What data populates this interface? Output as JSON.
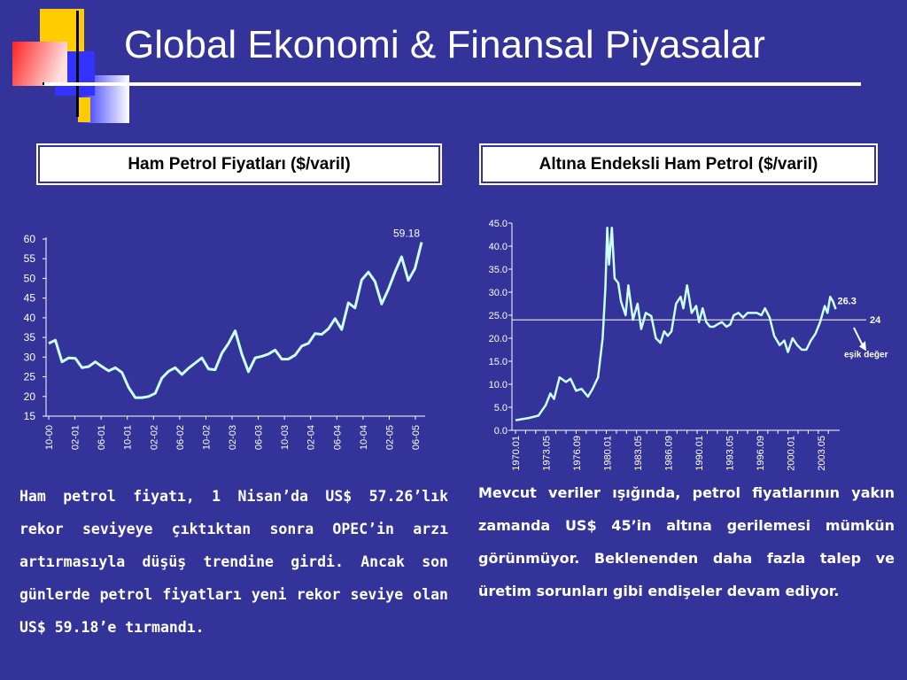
{
  "title": "Global Ekonomi & Finansal Piyasalar",
  "colors": {
    "background": "#333399",
    "line": "#ccffff",
    "text": "#ffffff"
  },
  "left_box_label": "Ham Petrol Fiyatları ($/varil)",
  "right_box_label": "Altına Endeksli Ham Petrol ($/varil)",
  "left_text": "Ham petrol fiyatı, 1 Nisan’da US$ 57.26’lık rekor seviyeye çıktıktan sonra OPEC’in arzı artırmasıyla düşüş trendine girdi. Ancak son günlerde petrol fiyatları yeni rekor seviye olan US$ 59.18’e tırmandı.",
  "right_text": "Mevcut veriler ışığında, petrol fiyatlarının yakın zamanda US$ 45’in altına gerilemesi mümkün görünmüyor. Beklenenden daha fazla talep ve üretim sorunları gibi endişeler devam ediyor.",
  "chart_data": [
    {
      "type": "line",
      "title": "Ham Petrol Fiyatları ($/varil)",
      "ylim": [
        15,
        60
      ],
      "yticks": [
        15,
        20,
        25,
        30,
        35,
        40,
        45,
        50,
        55,
        60
      ],
      "xticks": [
        "10-00",
        "02-01",
        "06-01",
        "10-01",
        "02-02",
        "06-02",
        "10-02",
        "02-03",
        "06-03",
        "10-03",
        "02-04",
        "06-04",
        "10-04",
        "02-05",
        "06-05"
      ],
      "values": [
        33.5,
        34.3,
        28.8,
        29.8,
        29.7,
        27.3,
        27.6,
        28.8,
        27.6,
        26.5,
        27.3,
        26.1,
        22.3,
        19.7,
        19.7,
        20.0,
        20.8,
        24.7,
        26.4,
        27.3,
        25.6,
        27.2,
        28.5,
        29.8,
        27.0,
        26.8,
        31.0,
        33.5,
        36.7,
        30.8,
        26.3,
        29.8,
        30.2,
        30.8,
        31.8,
        29.5,
        29.5,
        30.5,
        32.8,
        33.5,
        36.0,
        35.8,
        37.2,
        39.8,
        37.0,
        43.8,
        42.5,
        49.6,
        51.6,
        49.2,
        43.5,
        47.2,
        51.6,
        55.5,
        49.5,
        52.5,
        59.18
      ],
      "annotations": [
        {
          "text": "59.18",
          "value": 59.18
        }
      ]
    },
    {
      "type": "line",
      "title": "Altına Endeksli Ham Petrol ($/varil)",
      "ylim": [
        0,
        45
      ],
      "ytick_labels": [
        "0.0",
        "5.0",
        "10.0",
        "15.0",
        "20.0",
        "25.0",
        "30.0",
        "35.0",
        "40.0",
        "45.0"
      ],
      "xticks": [
        "1970.01",
        "1973.05",
        "1976.09",
        "1980.01",
        "1983.05",
        "1986.09",
        "1990.01",
        "1993.05",
        "1996.09",
        "2000.01",
        "2003.05"
      ],
      "x": [
        1970.0,
        1971.5,
        1972.5,
        1973.3,
        1973.8,
        1974.2,
        1974.8,
        1975.5,
        1976.0,
        1976.6,
        1977.2,
        1977.9,
        1978.4,
        1979.0,
        1979.5,
        1979.8,
        1980.0,
        1980.2,
        1980.5,
        1980.8,
        1981.2,
        1981.5,
        1982.0,
        1982.3,
        1982.8,
        1983.3,
        1983.7,
        1984.2,
        1984.8,
        1985.3,
        1985.8,
        1986.2,
        1986.6,
        1987.0,
        1987.5,
        1988.0,
        1988.3,
        1988.7,
        1989.2,
        1989.7,
        1990.0,
        1990.4,
        1990.8,
        1991.2,
        1991.6,
        1992.0,
        1992.5,
        1993.0,
        1993.4,
        1993.8,
        1994.3,
        1994.8,
        1995.3,
        1995.8,
        1996.3,
        1996.8,
        1997.2,
        1997.7,
        1998.2,
        1998.8,
        1999.3,
        1999.7,
        2000.2,
        2000.7,
        2001.2,
        2001.7,
        2002.2,
        2002.7,
        2003.2,
        2003.7,
        2004.0,
        2004.3,
        2004.6,
        2004.9
      ],
      "values": [
        2.2,
        2.7,
        3.2,
        5.5,
        8.0,
        6.8,
        11.5,
        10.5,
        11.2,
        8.6,
        9.0,
        7.3,
        9.0,
        11.5,
        20.0,
        31.0,
        44.0,
        36.0,
        44.0,
        33.0,
        32.0,
        28.0,
        25.0,
        31.5,
        24.0,
        27.5,
        22.0,
        25.5,
        24.8,
        20.0,
        19.0,
        21.5,
        20.5,
        21.5,
        27.5,
        29.0,
        26.5,
        31.5,
        25.5,
        27.0,
        23.5,
        26.5,
        23.5,
        22.5,
        22.5,
        23.0,
        23.5,
        22.5,
        23.0,
        25.0,
        25.5,
        24.5,
        25.5,
        25.5,
        25.5,
        25.0,
        26.5,
        24.5,
        20.5,
        18.5,
        19.5,
        17.0,
        20.0,
        18.5,
        17.5,
        17.5,
        19.5,
        21.0,
        23.5,
        27.0,
        25.5,
        29.0,
        28.0,
        26.3
      ],
      "reference_line": {
        "value": 24,
        "label": "24"
      },
      "annotations": [
        {
          "text": "26.3",
          "value": 26.3
        },
        {
          "text": "eşik değer"
        }
      ]
    }
  ]
}
